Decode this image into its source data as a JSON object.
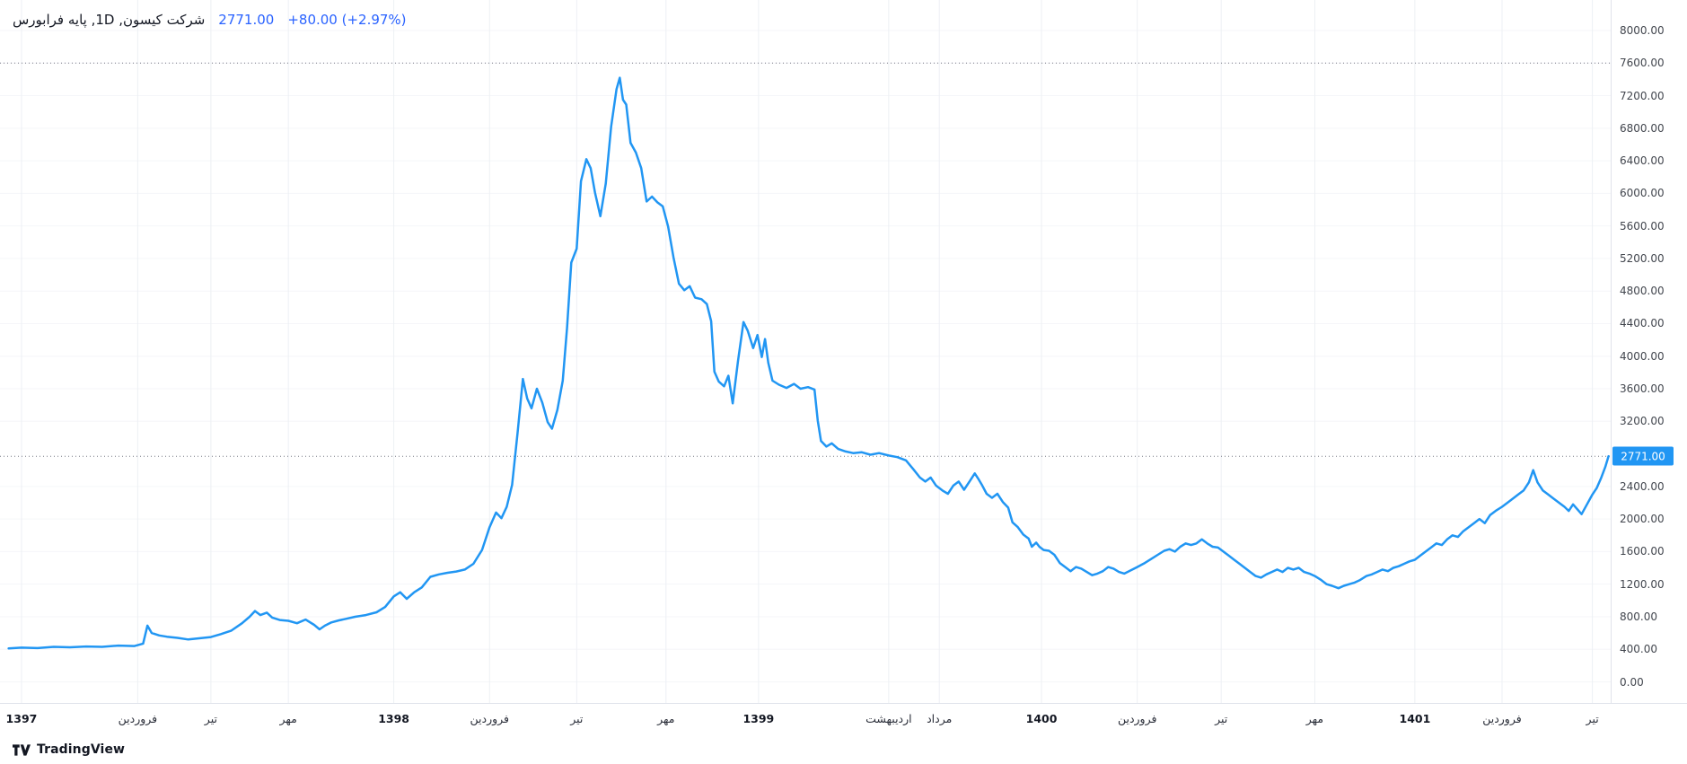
{
  "header": {
    "title": "شرکت کیسون, 1D, پایه فرابورس",
    "price": "2771.00",
    "change": "+80.00 (+2.97%)"
  },
  "footer": {
    "brand": "TradingView"
  },
  "colors": {
    "accent": "#2196F3",
    "badge_bg": "#2196F3",
    "price_text": "#2962FF",
    "title_text": "#131722",
    "axis_text": "#42464e",
    "grid_vertical": "#edf0f4",
    "grid_horizontal": "#f5f6f9",
    "border": "#e0e3eb",
    "dotted": "#787b86",
    "background": "#ffffff"
  },
  "chart_data": {
    "type": "line",
    "title": "شرکت کیسون, 1D, پایه فرابورس",
    "xlabel": "",
    "ylabel": "",
    "legend": "none",
    "grid": true,
    "x_domain": [
      0,
      1497
    ],
    "y_domain": [
      0,
      8000
    ],
    "ylim": [
      0,
      8000
    ],
    "last_price": 2771,
    "last_price_label": "2771.00",
    "dotted_levels": [
      7600,
      2771
    ],
    "y_ticks": [
      {
        "value": 8000,
        "label": "8000.00"
      },
      {
        "value": 7600,
        "label": "7600.00"
      },
      {
        "value": 7200,
        "label": "7200.00"
      },
      {
        "value": 6800,
        "label": "6800.00"
      },
      {
        "value": 6400,
        "label": "6400.00"
      },
      {
        "value": 6000,
        "label": "6000.00"
      },
      {
        "value": 5600,
        "label": "5600.00"
      },
      {
        "value": 5200,
        "label": "5200.00"
      },
      {
        "value": 4800,
        "label": "4800.00"
      },
      {
        "value": 4400,
        "label": "4400.00"
      },
      {
        "value": 4000,
        "label": "4000.00"
      },
      {
        "value": 3600,
        "label": "3600.00"
      },
      {
        "value": 3200,
        "label": "3200.00"
      },
      {
        "value": 2400,
        "label": "2400.00"
      },
      {
        "value": 2000,
        "label": "2000.00"
      },
      {
        "value": 1600,
        "label": "1600.00"
      },
      {
        "value": 1200,
        "label": "1200.00"
      },
      {
        "value": 800,
        "label": "800.00"
      },
      {
        "value": 400,
        "label": "400.00"
      },
      {
        "value": 0,
        "label": "0.00"
      }
    ],
    "x_ticks": [
      {
        "x": 20,
        "label": "1397",
        "major": true
      },
      {
        "x": 128,
        "label": "فروردین"
      },
      {
        "x": 196,
        "label": "تیر"
      },
      {
        "x": 268,
        "label": "مهر"
      },
      {
        "x": 366,
        "label": "1398",
        "major": true
      },
      {
        "x": 455,
        "label": "فروردین"
      },
      {
        "x": 536,
        "label": "تیر"
      },
      {
        "x": 619,
        "label": "مهر"
      },
      {
        "x": 705,
        "label": "1399",
        "major": true
      },
      {
        "x": 826,
        "label": "اردیبهشت"
      },
      {
        "x": 873,
        "label": "مرداد"
      },
      {
        "x": 968,
        "label": "1400",
        "major": true
      },
      {
        "x": 1057,
        "label": "فروردین"
      },
      {
        "x": 1135,
        "label": "تیر"
      },
      {
        "x": 1222,
        "label": "مهر"
      },
      {
        "x": 1315,
        "label": "1401",
        "major": true
      },
      {
        "x": 1396,
        "label": "فروردین"
      },
      {
        "x": 1480,
        "label": "تیر"
      }
    ],
    "series": [
      {
        "name": "شرکت کیسون",
        "color": "#2196F3",
        "points": [
          [
            8,
            410
          ],
          [
            20,
            420
          ],
          [
            35,
            415
          ],
          [
            50,
            430
          ],
          [
            65,
            425
          ],
          [
            80,
            435
          ],
          [
            95,
            430
          ],
          [
            110,
            445
          ],
          [
            125,
            440
          ],
          [
            133,
            470
          ],
          [
            137,
            690
          ],
          [
            141,
            600
          ],
          [
            148,
            570
          ],
          [
            155,
            555
          ],
          [
            165,
            540
          ],
          [
            175,
            520
          ],
          [
            185,
            535
          ],
          [
            196,
            550
          ],
          [
            205,
            585
          ],
          [
            215,
            630
          ],
          [
            225,
            720
          ],
          [
            232,
            800
          ],
          [
            237,
            870
          ],
          [
            242,
            820
          ],
          [
            248,
            850
          ],
          [
            253,
            790
          ],
          [
            260,
            760
          ],
          [
            268,
            750
          ],
          [
            276,
            720
          ],
          [
            284,
            765
          ],
          [
            292,
            700
          ],
          [
            297,
            645
          ],
          [
            302,
            690
          ],
          [
            308,
            730
          ],
          [
            315,
            755
          ],
          [
            322,
            775
          ],
          [
            330,
            800
          ],
          [
            340,
            820
          ],
          [
            350,
            855
          ],
          [
            358,
            920
          ],
          [
            366,
            1050
          ],
          [
            372,
            1100
          ],
          [
            378,
            1020
          ],
          [
            385,
            1100
          ],
          [
            392,
            1160
          ],
          [
            400,
            1290
          ],
          [
            408,
            1320
          ],
          [
            416,
            1340
          ],
          [
            424,
            1355
          ],
          [
            432,
            1380
          ],
          [
            440,
            1450
          ],
          [
            448,
            1620
          ],
          [
            455,
            1900
          ],
          [
            461,
            2080
          ],
          [
            466,
            2010
          ],
          [
            471,
            2150
          ],
          [
            476,
            2420
          ],
          [
            481,
            3050
          ],
          [
            486,
            3720
          ],
          [
            490,
            3480
          ],
          [
            494,
            3360
          ],
          [
            499,
            3600
          ],
          [
            504,
            3430
          ],
          [
            509,
            3190
          ],
          [
            513,
            3110
          ],
          [
            518,
            3340
          ],
          [
            523,
            3700
          ],
          [
            527,
            4350
          ],
          [
            531,
            5150
          ],
          [
            536,
            5320
          ],
          [
            540,
            6150
          ],
          [
            545,
            6420
          ],
          [
            549,
            6310
          ],
          [
            553,
            6010
          ],
          [
            558,
            5720
          ],
          [
            563,
            6120
          ],
          [
            568,
            6820
          ],
          [
            573,
            7280
          ],
          [
            576,
            7420
          ],
          [
            579,
            7150
          ],
          [
            582,
            7090
          ],
          [
            586,
            6620
          ],
          [
            591,
            6500
          ],
          [
            596,
            6310
          ],
          [
            601,
            5900
          ],
          [
            606,
            5960
          ],
          [
            611,
            5890
          ],
          [
            616,
            5840
          ],
          [
            621,
            5590
          ],
          [
            626,
            5210
          ],
          [
            631,
            4890
          ],
          [
            636,
            4810
          ],
          [
            641,
            4860
          ],
          [
            646,
            4720
          ],
          [
            652,
            4700
          ],
          [
            657,
            4640
          ],
          [
            661,
            4430
          ],
          [
            664,
            3810
          ],
          [
            668,
            3690
          ],
          [
            673,
            3630
          ],
          [
            677,
            3760
          ],
          [
            681,
            3420
          ],
          [
            686,
            3950
          ],
          [
            691,
            4420
          ],
          [
            695,
            4310
          ],
          [
            700,
            4100
          ],
          [
            704,
            4260
          ],
          [
            708,
            3990
          ],
          [
            711,
            4210
          ],
          [
            714,
            3920
          ],
          [
            718,
            3700
          ],
          [
            724,
            3650
          ],
          [
            731,
            3610
          ],
          [
            738,
            3660
          ],
          [
            744,
            3600
          ],
          [
            751,
            3620
          ],
          [
            757,
            3590
          ],
          [
            760,
            3210
          ],
          [
            763,
            2960
          ],
          [
            768,
            2890
          ],
          [
            773,
            2930
          ],
          [
            779,
            2860
          ],
          [
            786,
            2830
          ],
          [
            793,
            2810
          ],
          [
            801,
            2820
          ],
          [
            809,
            2790
          ],
          [
            817,
            2810
          ],
          [
            826,
            2780
          ],
          [
            834,
            2760
          ],
          [
            842,
            2720
          ],
          [
            849,
            2610
          ],
          [
            855,
            2510
          ],
          [
            860,
            2460
          ],
          [
            865,
            2510
          ],
          [
            870,
            2410
          ],
          [
            876,
            2350
          ],
          [
            881,
            2310
          ],
          [
            886,
            2410
          ],
          [
            891,
            2460
          ],
          [
            896,
            2360
          ],
          [
            901,
            2460
          ],
          [
            906,
            2560
          ],
          [
            909,
            2500
          ],
          [
            913,
            2410
          ],
          [
            917,
            2310
          ],
          [
            922,
            2260
          ],
          [
            927,
            2310
          ],
          [
            932,
            2210
          ],
          [
            937,
            2140
          ],
          [
            941,
            1960
          ],
          [
            946,
            1900
          ],
          [
            951,
            1810
          ],
          [
            956,
            1760
          ],
          [
            959,
            1660
          ],
          [
            963,
            1710
          ],
          [
            966,
            1660
          ],
          [
            970,
            1620
          ],
          [
            975,
            1610
          ],
          [
            980,
            1560
          ],
          [
            985,
            1460
          ],
          [
            990,
            1410
          ],
          [
            995,
            1360
          ],
          [
            1000,
            1410
          ],
          [
            1005,
            1390
          ],
          [
            1010,
            1350
          ],
          [
            1015,
            1310
          ],
          [
            1020,
            1330
          ],
          [
            1025,
            1360
          ],
          [
            1030,
            1410
          ],
          [
            1035,
            1390
          ],
          [
            1040,
            1350
          ],
          [
            1045,
            1330
          ],
          [
            1051,
            1370
          ],
          [
            1057,
            1410
          ],
          [
            1064,
            1460
          ],
          [
            1070,
            1510
          ],
          [
            1076,
            1560
          ],
          [
            1082,
            1610
          ],
          [
            1087,
            1630
          ],
          [
            1092,
            1600
          ],
          [
            1097,
            1660
          ],
          [
            1102,
            1700
          ],
          [
            1107,
            1680
          ],
          [
            1112,
            1700
          ],
          [
            1117,
            1750
          ],
          [
            1122,
            1700
          ],
          [
            1127,
            1660
          ],
          [
            1132,
            1650
          ],
          [
            1137,
            1600
          ],
          [
            1142,
            1550
          ],
          [
            1147,
            1500
          ],
          [
            1152,
            1450
          ],
          [
            1157,
            1400
          ],
          [
            1162,
            1350
          ],
          [
            1167,
            1300
          ],
          [
            1172,
            1280
          ],
          [
            1177,
            1320
          ],
          [
            1182,
            1350
          ],
          [
            1187,
            1380
          ],
          [
            1192,
            1350
          ],
          [
            1197,
            1400
          ],
          [
            1202,
            1380
          ],
          [
            1207,
            1400
          ],
          [
            1212,
            1350
          ],
          [
            1217,
            1330
          ],
          [
            1222,
            1300
          ],
          [
            1228,
            1250
          ],
          [
            1233,
            1200
          ],
          [
            1238,
            1180
          ],
          [
            1244,
            1150
          ],
          [
            1249,
            1180
          ],
          [
            1254,
            1200
          ],
          [
            1259,
            1220
          ],
          [
            1264,
            1250
          ],
          [
            1270,
            1300
          ],
          [
            1275,
            1320
          ],
          [
            1280,
            1350
          ],
          [
            1285,
            1380
          ],
          [
            1290,
            1360
          ],
          [
            1295,
            1400
          ],
          [
            1300,
            1420
          ],
          [
            1305,
            1450
          ],
          [
            1310,
            1480
          ],
          [
            1315,
            1500
          ],
          [
            1320,
            1550
          ],
          [
            1325,
            1600
          ],
          [
            1330,
            1650
          ],
          [
            1335,
            1700
          ],
          [
            1340,
            1680
          ],
          [
            1345,
            1750
          ],
          [
            1350,
            1800
          ],
          [
            1355,
            1780
          ],
          [
            1360,
            1850
          ],
          [
            1365,
            1900
          ],
          [
            1370,
            1950
          ],
          [
            1375,
            2000
          ],
          [
            1380,
            1950
          ],
          [
            1385,
            2050
          ],
          [
            1390,
            2100
          ],
          [
            1396,
            2150
          ],
          [
            1401,
            2200
          ],
          [
            1406,
            2250
          ],
          [
            1411,
            2300
          ],
          [
            1416,
            2350
          ],
          [
            1421,
            2450
          ],
          [
            1425,
            2600
          ],
          [
            1429,
            2450
          ],
          [
            1434,
            2350
          ],
          [
            1439,
            2300
          ],
          [
            1444,
            2250
          ],
          [
            1449,
            2200
          ],
          [
            1454,
            2150
          ],
          [
            1458,
            2100
          ],
          [
            1462,
            2180
          ],
          [
            1466,
            2120
          ],
          [
            1470,
            2060
          ],
          [
            1475,
            2180
          ],
          [
            1480,
            2300
          ],
          [
            1484,
            2380
          ],
          [
            1488,
            2500
          ],
          [
            1492,
            2640
          ],
          [
            1495,
            2771
          ]
        ]
      }
    ]
  }
}
